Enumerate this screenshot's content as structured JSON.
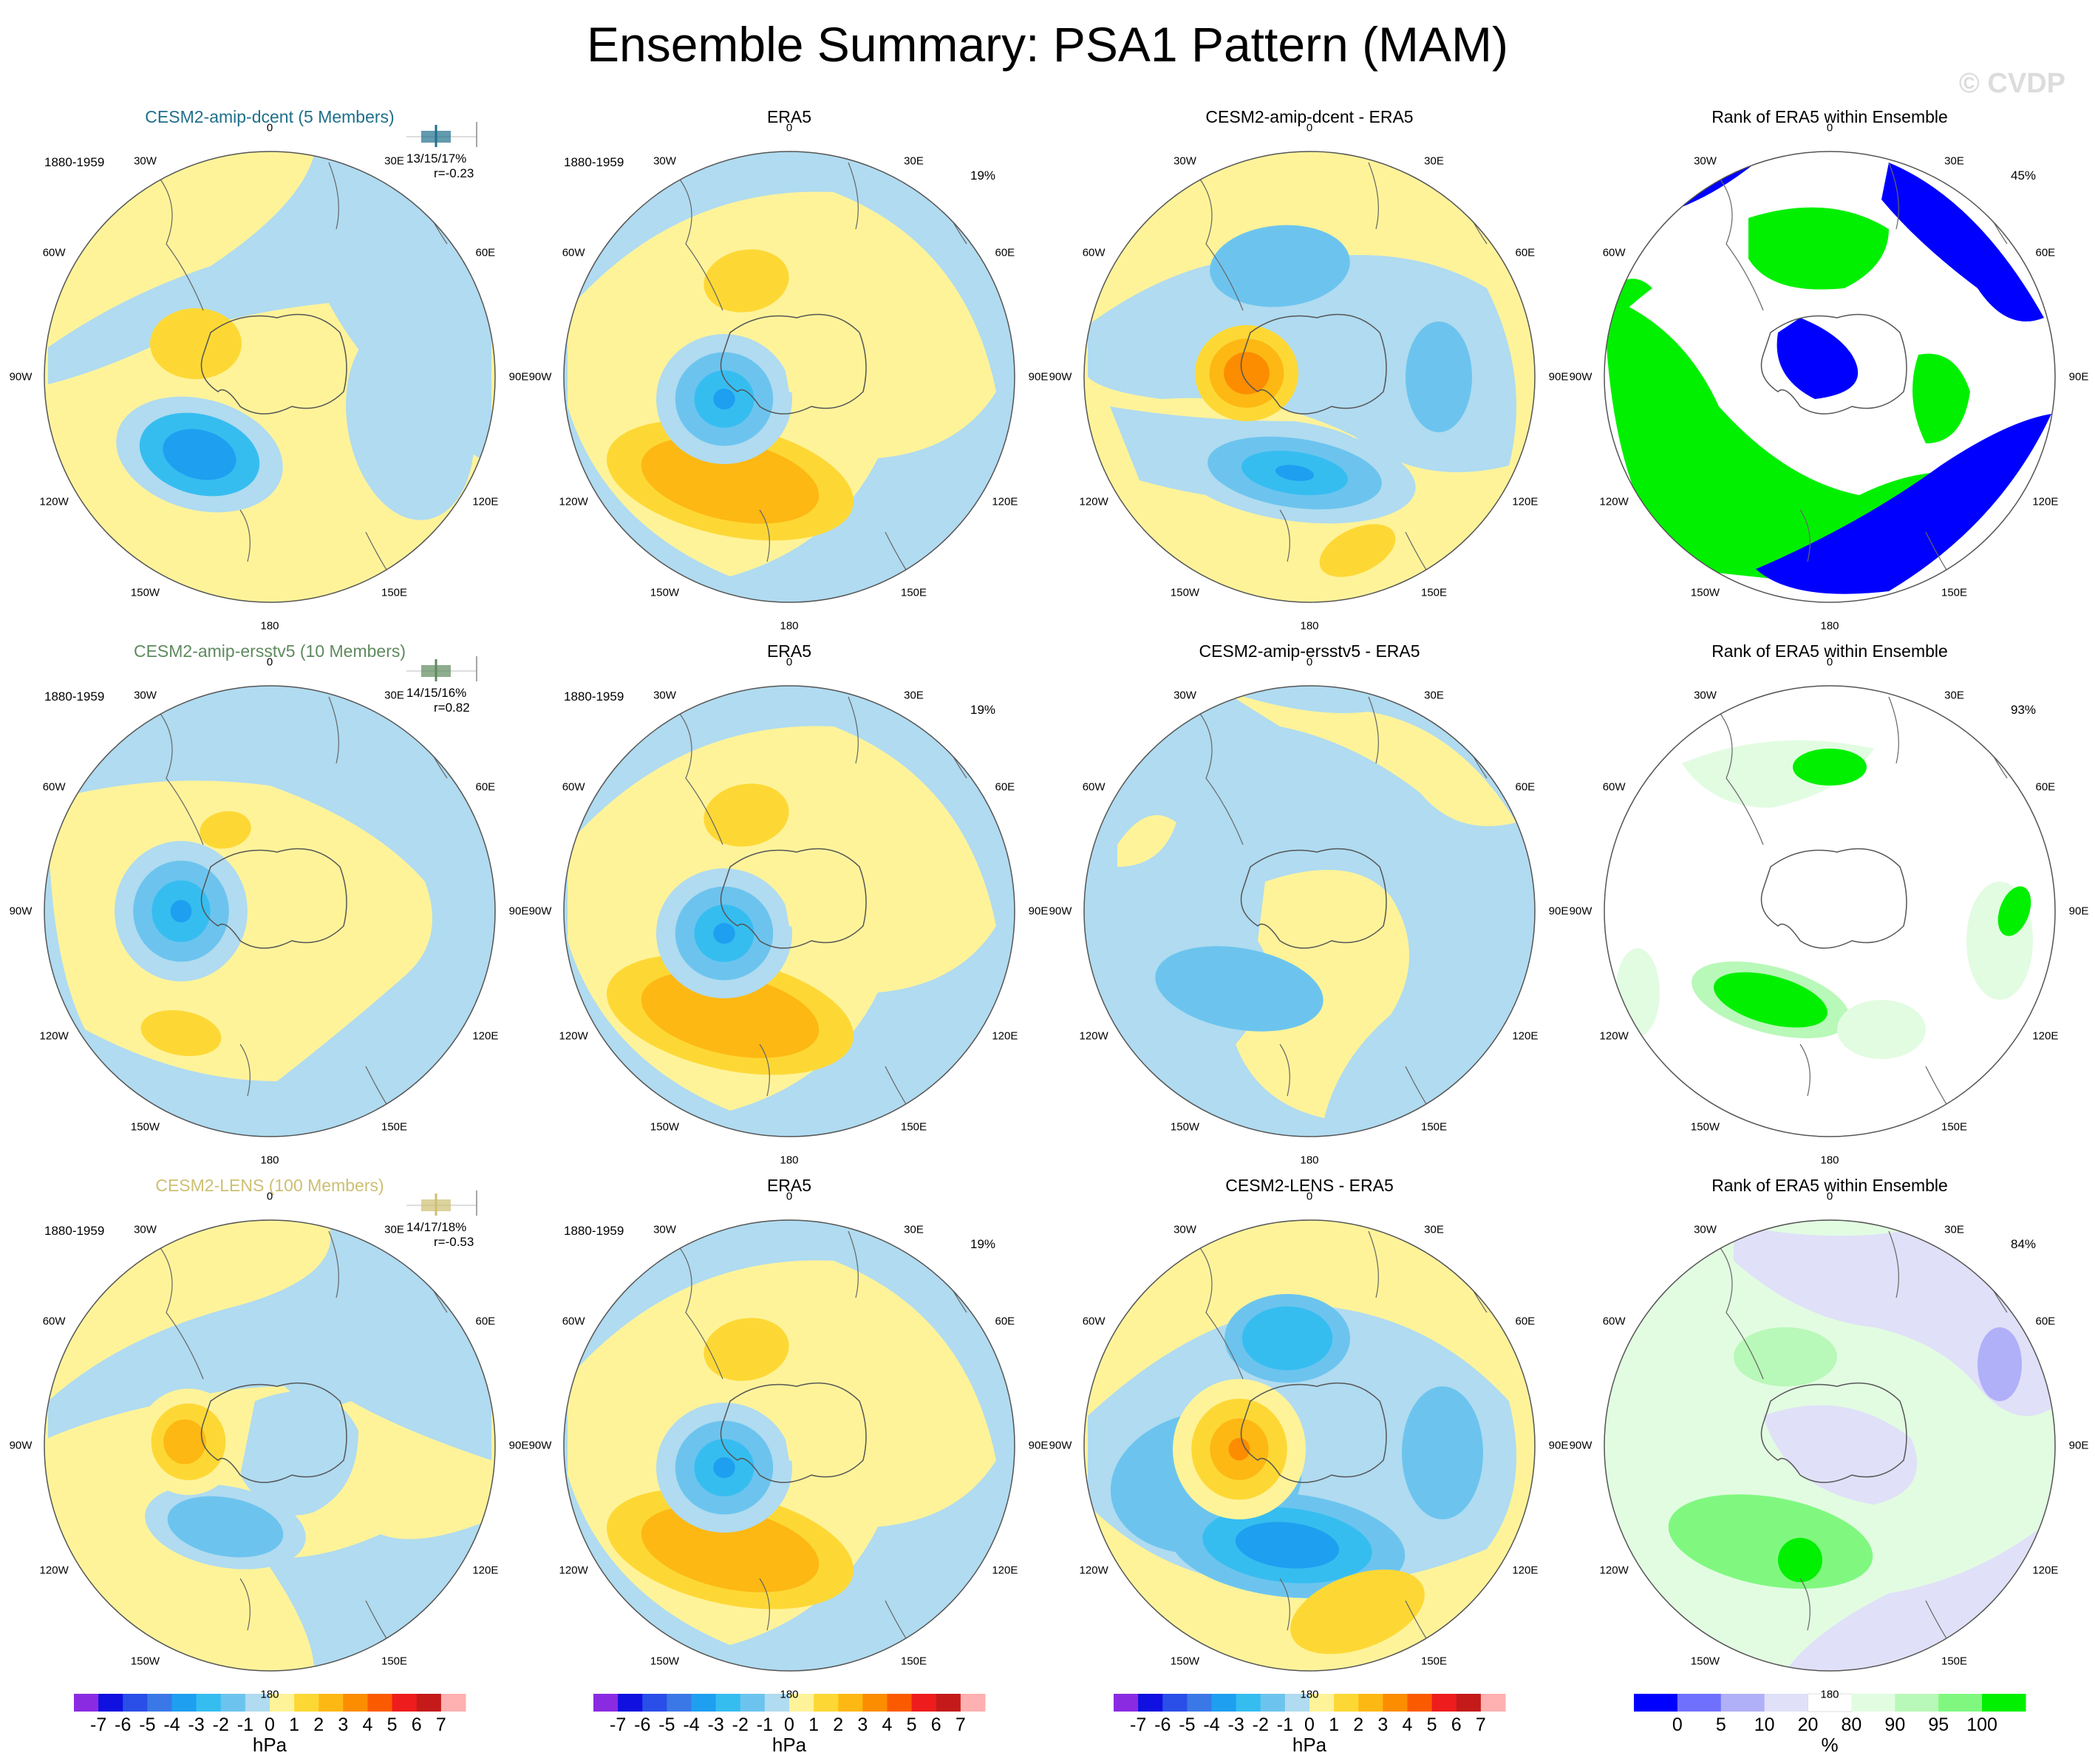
{
  "title": "Ensemble Summary: PSA1 Pattern (MAM)",
  "watermark": "© CVDP",
  "longitude_labels": [
    "0",
    "30E",
    "60E",
    "90E",
    "120E",
    "150E",
    "180",
    "150W",
    "120W",
    "90W",
    "60W",
    "30W"
  ],
  "rows": [
    {
      "model": "CESM2-amip-dcent (5 Members)",
      "model_color": "#1f6f8b",
      "period": "1880-1959",
      "stats": "13/15/17%",
      "corr": "r=-0.23",
      "panels": [
        {
          "kind": "model",
          "title": "CESM2-amip-dcent (5 Members)"
        },
        {
          "kind": "obs",
          "title": "ERA5",
          "period": "1880-1959",
          "pct": "19%"
        },
        {
          "kind": "diff",
          "title": "CESM2-amip-dcent - ERA5"
        },
        {
          "kind": "rank",
          "title": "Rank of ERA5 within Ensemble",
          "pct": "45%"
        }
      ]
    },
    {
      "model": "CESM2-amip-ersstv5 (10 Members)",
      "model_color": "#5e8a5e",
      "period": "1880-1959",
      "stats": "14/15/16%",
      "corr": "r=0.82",
      "panels": [
        {
          "kind": "model",
          "title": "CESM2-amip-ersstv5 (10 Members)"
        },
        {
          "kind": "obs",
          "title": "ERA5",
          "period": "1880-1959",
          "pct": "19%"
        },
        {
          "kind": "diff",
          "title": "CESM2-amip-ersstv5 - ERA5"
        },
        {
          "kind": "rank",
          "title": "Rank of ERA5 within Ensemble",
          "pct": "93%"
        }
      ]
    },
    {
      "model": "CESM2-LENS (100 Members)",
      "model_color": "#cdbf72",
      "period": "1880-1959",
      "stats": "14/17/18%",
      "corr": "r=-0.53",
      "panels": [
        {
          "kind": "model",
          "title": "CESM2-LENS (100 Members)"
        },
        {
          "kind": "obs",
          "title": "ERA5",
          "period": "1880-1959",
          "pct": "19%"
        },
        {
          "kind": "diff",
          "title": "CESM2-LENS - ERA5"
        },
        {
          "kind": "rank",
          "title": "Rank of ERA5 within Ensemble",
          "pct": "84%"
        }
      ]
    }
  ],
  "colorbars": [
    {
      "unit": "hPa",
      "labels": [
        "-7",
        "-6",
        "-5",
        "-4",
        "-3",
        "-2",
        "-1",
        "0",
        "1",
        "2",
        "3",
        "4",
        "5",
        "6",
        "7"
      ],
      "colors": [
        "#8a2be2",
        "#1010e0",
        "#2a4ee8",
        "#3a78e8",
        "#1e9ff0",
        "#36bdf0",
        "#6cc4ee",
        "#b0dbf0",
        "#fff39a",
        "#fdd835",
        "#fdb813",
        "#fc8c00",
        "#fb5a00",
        "#ee1c1c",
        "#c41a1a",
        "#ffb0b0"
      ]
    },
    {
      "unit": "hPa",
      "labels": [
        "-7",
        "-6",
        "-5",
        "-4",
        "-3",
        "-2",
        "-1",
        "0",
        "1",
        "2",
        "3",
        "4",
        "5",
        "6",
        "7"
      ],
      "colors": [
        "#8a2be2",
        "#1010e0",
        "#2a4ee8",
        "#3a78e8",
        "#1e9ff0",
        "#36bdf0",
        "#6cc4ee",
        "#b0dbf0",
        "#fff39a",
        "#fdd835",
        "#fdb813",
        "#fc8c00",
        "#fb5a00",
        "#ee1c1c",
        "#c41a1a",
        "#ffb0b0"
      ]
    },
    {
      "unit": "hPa",
      "labels": [
        "-7",
        "-6",
        "-5",
        "-4",
        "-3",
        "-2",
        "-1",
        "0",
        "1",
        "2",
        "3",
        "4",
        "5",
        "6",
        "7"
      ],
      "colors": [
        "#8a2be2",
        "#1010e0",
        "#2a4ee8",
        "#3a78e8",
        "#1e9ff0",
        "#36bdf0",
        "#6cc4ee",
        "#b0dbf0",
        "#fff39a",
        "#fdd835",
        "#fdb813",
        "#fc8c00",
        "#fb5a00",
        "#ee1c1c",
        "#c41a1a",
        "#ffb0b0"
      ]
    },
    {
      "unit": "%",
      "labels": [
        "0",
        "5",
        "10",
        "20",
        "80",
        "90",
        "95",
        "100"
      ],
      "colors": [
        "#0000ff",
        "#7070ff",
        "#b0b0f8",
        "#e0e0f8",
        "#ffffff",
        "#e2fce2",
        "#b8f8b8",
        "#80f880",
        "#00f000"
      ]
    }
  ]
}
